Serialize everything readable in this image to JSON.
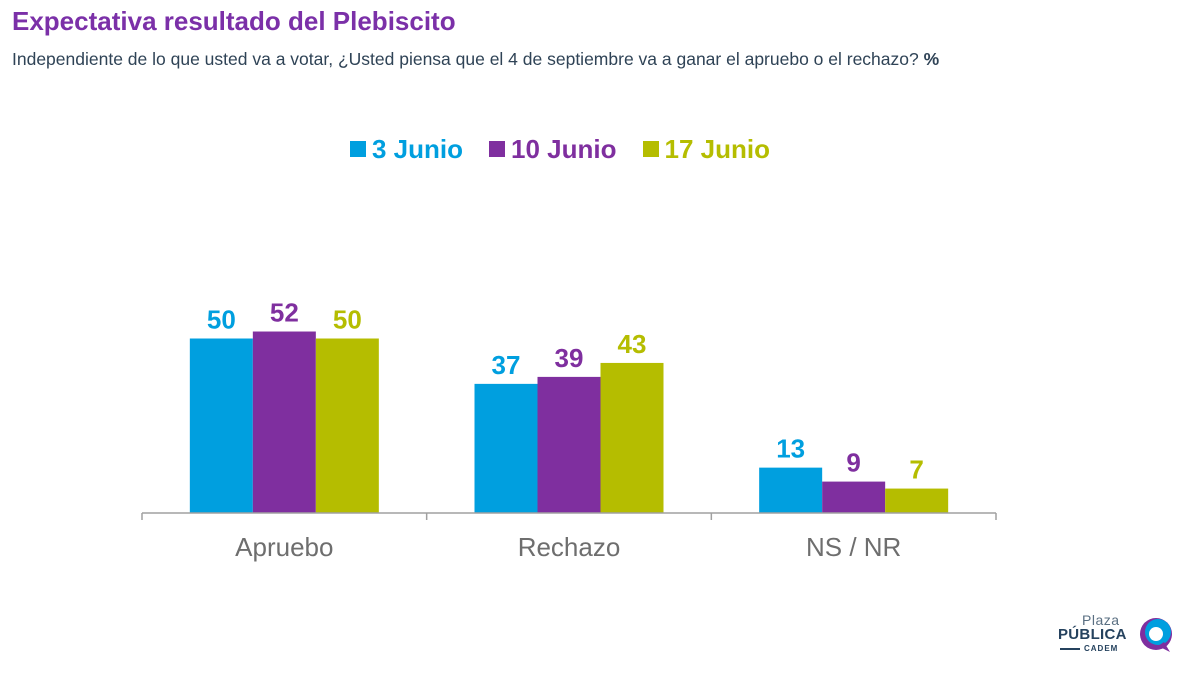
{
  "header": {
    "title": "Expectativa resultado del Plebiscito",
    "subtitle": "Independiente de lo que usted va a votar, ¿Usted piensa que el 4 de septiembre va a ganar el apruebo o el rechazo?",
    "unit": "%"
  },
  "chart_data": {
    "type": "bar",
    "title": "Expectativa resultado del Plebiscito",
    "xlabel": "",
    "ylabel": "",
    "ylim": [
      0,
      60
    ],
    "grid": false,
    "legend_position": "top-center",
    "categories": [
      "Apruebo",
      "Rechazo",
      "NS / NR"
    ],
    "series": [
      {
        "name": "3 Junio",
        "color": "#009fdf",
        "values": [
          50,
          37,
          13
        ]
      },
      {
        "name": "10 Junio",
        "color": "#7f2f9f",
        "values": [
          52,
          39,
          9
        ]
      },
      {
        "name": "17 Junio",
        "color": "#b5bd00",
        "values": [
          50,
          43,
          7
        ]
      }
    ]
  },
  "logo": {
    "line1": "Plaza",
    "line2": "PÚBLICA",
    "line3": "CADEM"
  }
}
